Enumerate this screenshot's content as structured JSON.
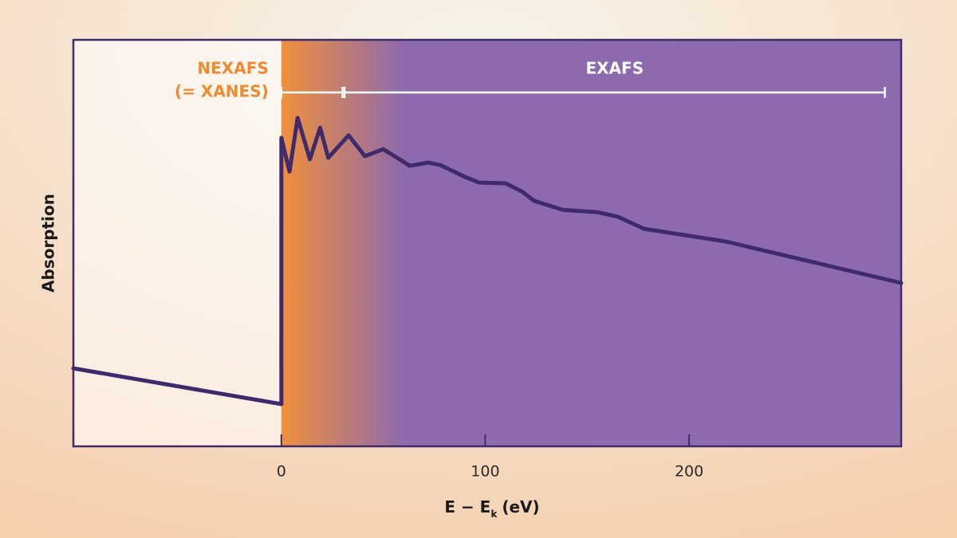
{
  "chart_data": {
    "type": "line",
    "xlabel": [
      "E − E",
      "k",
      "(eV)"
    ],
    "ylabel": "Absorption",
    "xlim": [
      -102,
      304
    ],
    "ylim": [
      0,
      100
    ],
    "xticks": [
      0,
      100,
      200
    ],
    "background_colors": [
      "#f0903c",
      "#8d6aad"
    ],
    "regions": [
      {
        "name": [
          "NEXAFS",
          "(= XANES)"
        ],
        "xrange": [
          0,
          30
        ],
        "color": "#f08a30"
      },
      {
        "name": [
          "EXAFS"
        ],
        "xrange": [
          31,
          296
        ],
        "color": "#ffffff"
      }
    ],
    "series": [
      {
        "color": "#3f2a6b",
        "x": [
          -102,
          0,
          0,
          4,
          8,
          14,
          19,
          23,
          33,
          41,
          50,
          58,
          63,
          72,
          78,
          90,
          97,
          110,
          118,
          124,
          138,
          155,
          165,
          178,
          218,
          304
        ],
        "values": [
          19.2,
          10.4,
          75.9,
          67.6,
          80.8,
          70.6,
          78.4,
          71,
          76.5,
          71.4,
          73.1,
          70.6,
          69,
          69.8,
          69.2,
          66.3,
          64.9,
          64.7,
          62.7,
          60.4,
          58.2,
          57.6,
          56.5,
          53.5,
          50.4,
          40.2
        ]
      }
    ]
  }
}
